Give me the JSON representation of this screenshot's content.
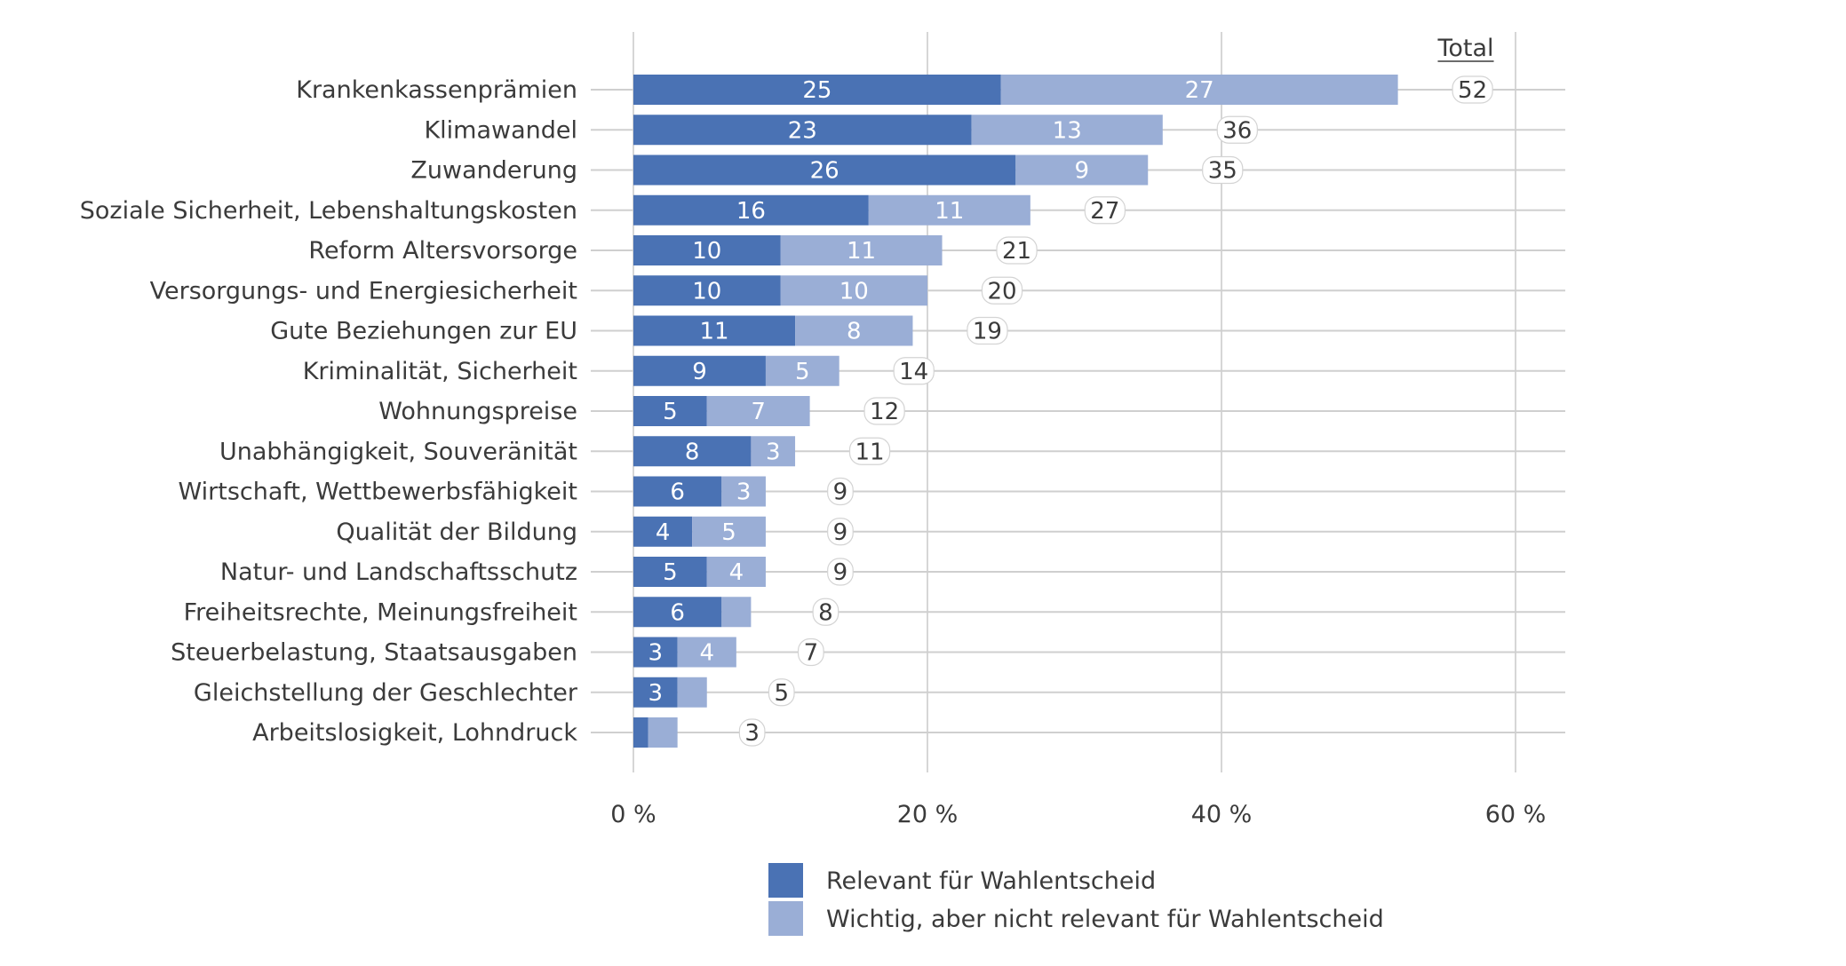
{
  "chart_data": {
    "type": "bar",
    "orientation": "horizontal",
    "stacked": true,
    "categories": [
      "Krankenkassenprämien",
      "Klimawandel",
      "Zuwanderung",
      "Soziale Sicherheit, Lebenshaltungskosten",
      "Reform Altersvorsorge",
      "Versorgungs- und Energiesicherheit",
      "Gute Beziehungen zur EU",
      "Kriminalität, Sicherheit",
      "Wohnungspreise",
      "Unabhängigkeit, Souveränität",
      "Wirtschaft, Wettbewerbsfähigkeit",
      "Qualität der Bildung",
      "Natur- und Landschaftsschutz",
      "Freiheitsrechte, Meinungsfreiheit",
      "Steuerbelastung, Staatsausgaben",
      "Gleichstellung der Geschlechter",
      "Arbeitslosigkeit, Lohndruck"
    ],
    "series": [
      {
        "name": "Relevant für Wahlentscheid",
        "color": "#4a72b4",
        "values": [
          25,
          23,
          26,
          16,
          10,
          10,
          11,
          9,
          5,
          8,
          6,
          4,
          5,
          6,
          3,
          3,
          1
        ],
        "labels": [
          "25",
          "23",
          "26",
          "16",
          "10",
          "10",
          "11",
          "9",
          "5",
          "8",
          "6",
          "4",
          "5",
          "6",
          "3",
          "3",
          ""
        ]
      },
      {
        "name": "Wichtig, aber nicht relevant für Wahlentscheid",
        "color": "#9aaed6",
        "values": [
          27,
          13,
          9,
          11,
          11,
          10,
          8,
          5,
          7,
          3,
          3,
          5,
          4,
          2,
          4,
          2,
          2
        ],
        "labels": [
          "27",
          "13",
          "9",
          "11",
          "11",
          "10",
          "8",
          "5",
          "7",
          "3",
          "3",
          "5",
          "4",
          "",
          "4",
          "",
          ""
        ]
      }
    ],
    "totals": [
      "52",
      "36",
      "35",
      "27",
      "21",
      "20",
      "19",
      "14",
      "12",
      "11",
      "9",
      "9",
      "9",
      "8",
      "7",
      "5",
      "3"
    ],
    "total_header": "Total",
    "xlim": [
      0,
      63
    ],
    "xticks": [
      0,
      20,
      40,
      60
    ],
    "xtick_labels": [
      "0 %",
      "20 %",
      "40 %",
      "60 %"
    ],
    "grid": true,
    "legend_position": "bottom"
  }
}
